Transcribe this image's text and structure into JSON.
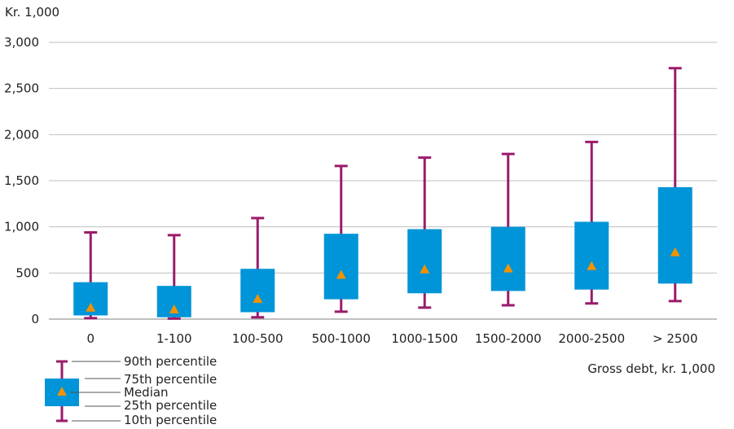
{
  "chart_data": {
    "type": "box",
    "ylabel": "Kr. 1,000",
    "xlabel": "Gross debt, kr. 1,000",
    "ylim": [
      0,
      3000
    ],
    "yticks": [
      0,
      500,
      1000,
      1500,
      2000,
      2500,
      3000
    ],
    "ytick_labels": [
      "0",
      "500",
      "1,000",
      "1,500",
      "2,000",
      "2,500",
      "3,000"
    ],
    "grid": true,
    "categories": [
      "0",
      "1-100",
      "100-500",
      "500-1000",
      "1000-1500",
      "1500-2000",
      "2000-2500",
      "> 2500"
    ],
    "series": [
      {
        "p10": 10,
        "p25": 40,
        "median": 130,
        "p75": 400,
        "p90": 940
      },
      {
        "p10": 5,
        "p25": 20,
        "median": 110,
        "p75": 360,
        "p90": 910
      },
      {
        "p10": 20,
        "p25": 75,
        "median": 225,
        "p75": 545,
        "p90": 1095
      },
      {
        "p10": 80,
        "p25": 215,
        "median": 485,
        "p75": 925,
        "p90": 1660
      },
      {
        "p10": 125,
        "p25": 280,
        "median": 545,
        "p75": 975,
        "p90": 1750
      },
      {
        "p10": 150,
        "p25": 305,
        "median": 555,
        "p75": 1000,
        "p90": 1790
      },
      {
        "p10": 170,
        "p25": 320,
        "median": 580,
        "p75": 1055,
        "p90": 1920
      },
      {
        "p10": 195,
        "p25": 385,
        "median": 730,
        "p75": 1430,
        "p90": 2720
      }
    ],
    "legend": {
      "p90": "90th percentile",
      "p75": "75th percentile",
      "median": "Median",
      "p25": "25th percentile",
      "p10": "10th percentile"
    },
    "colors": {
      "box": "#0094d8",
      "whisker": "#9b1b6a",
      "median": "#f39200",
      "grid": "#bfbfbf",
      "text": "#222222"
    }
  }
}
